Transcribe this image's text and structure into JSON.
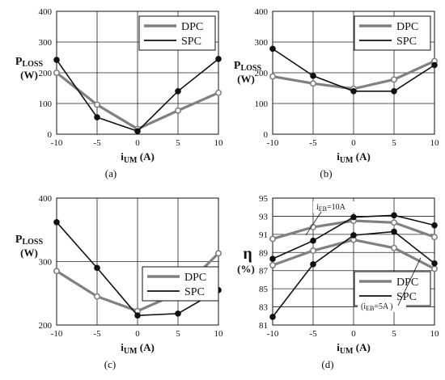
{
  "colors": {
    "DPC": "#808080",
    "SPC": "#111111",
    "grid": "#222222"
  },
  "chart_data": [
    {
      "type": "line",
      "panel": "(a)",
      "ylabel": {
        "main": "P",
        "sub": "LOSS",
        "unit": "(W)"
      },
      "xlabel": {
        "main": "i",
        "sub": "UM",
        "unit": " (A)"
      },
      "x": [
        -10,
        -5,
        0,
        5,
        10
      ],
      "xticks": [
        "-10",
        "-5",
        "0",
        "5",
        "10"
      ],
      "ylim": [
        0,
        400
      ],
      "yticks": [
        "0",
        "100",
        "200",
        "300",
        "400"
      ],
      "grid": true,
      "legend_position": "top-right",
      "series": [
        {
          "name": "DPC",
          "values": [
            200,
            96,
            17,
            77,
            135
          ]
        },
        {
          "name": "SPC",
          "values": [
            242,
            55,
            10,
            140,
            245
          ]
        }
      ],
      "annotations": []
    },
    {
      "type": "line",
      "panel": "(b)",
      "ylabel": {
        "main": "P",
        "sub": "LOSS",
        "unit": "(W)"
      },
      "xlabel": {
        "main": "i",
        "sub": "UM",
        "unit": " (A)"
      },
      "x": [
        -10,
        -5,
        0,
        5,
        10
      ],
      "xticks": [
        "-10",
        "-5",
        "0",
        "5",
        "10"
      ],
      "ylim": [
        0,
        400
      ],
      "yticks": [
        "0",
        "100",
        "200",
        "300",
        "400"
      ],
      "grid": true,
      "legend_position": "top-right",
      "series": [
        {
          "name": "DPC",
          "values": [
            188,
            165,
            148,
            178,
            238
          ]
        },
        {
          "name": "SPC",
          "values": [
            278,
            190,
            140,
            140,
            225
          ]
        }
      ],
      "annotations": []
    },
    {
      "type": "line",
      "panel": "(c)",
      "ylabel": {
        "main": "P",
        "sub": "LOSS",
        "unit": "(W)"
      },
      "xlabel": {
        "main": "i",
        "sub": "UM",
        "unit": " (A)"
      },
      "x": [
        -10,
        -5,
        0,
        5,
        10
      ],
      "xticks": [
        "-10",
        "-5",
        "0",
        "5",
        "10"
      ],
      "ylim": [
        200,
        400
      ],
      "yticks": [
        "200",
        "300",
        "400"
      ],
      "grid": true,
      "legend_position": "bottom-right",
      "series": [
        {
          "name": "DPC",
          "values": [
            285,
            245,
            222,
            250,
            313
          ]
        },
        {
          "name": "SPC",
          "values": [
            362,
            290,
            215,
            218,
            255
          ]
        }
      ],
      "annotations": []
    },
    {
      "type": "line",
      "panel": "(d)",
      "ylabel": {
        "main": "η",
        "sub": "",
        "unit": "(%)"
      },
      "xlabel": {
        "main": "i",
        "sub": "UM",
        "unit": " (A)"
      },
      "x": [
        -10,
        -5,
        0,
        5,
        10
      ],
      "xticks": [
        "-10",
        "-5",
        "0",
        "5",
        "10"
      ],
      "ylim": [
        81,
        95
      ],
      "yticks": [
        "81",
        "83",
        "85",
        "87",
        "89",
        "91",
        "93",
        "95"
      ],
      "grid": true,
      "legend_position": "bottom-right",
      "series": [
        {
          "name": "DPC",
          "curve": "iEB=10A",
          "values": [
            90.5,
            91.8,
            92.5,
            92.3,
            90.7
          ]
        },
        {
          "name": "SPC",
          "curve": "iEB=10A",
          "values": [
            88.3,
            90.3,
            92.9,
            93.1,
            92.0
          ]
        },
        {
          "name": "DPC",
          "curve": "iEB=5A",
          "values": [
            87.6,
            89.2,
            90.4,
            89.5,
            87.2
          ]
        },
        {
          "name": "SPC",
          "curve": "iEB=5A",
          "values": [
            81.9,
            87.7,
            90.9,
            91.3,
            87.8
          ]
        }
      ],
      "annotations": [
        {
          "main": "i",
          "sub": "EB",
          "rest": "=10A"
        },
        {
          "main": "(i",
          "sub": "EB",
          "rest": "=5A )"
        }
      ]
    }
  ],
  "legend": {
    "entries": [
      "DPC",
      "SPC"
    ]
  }
}
